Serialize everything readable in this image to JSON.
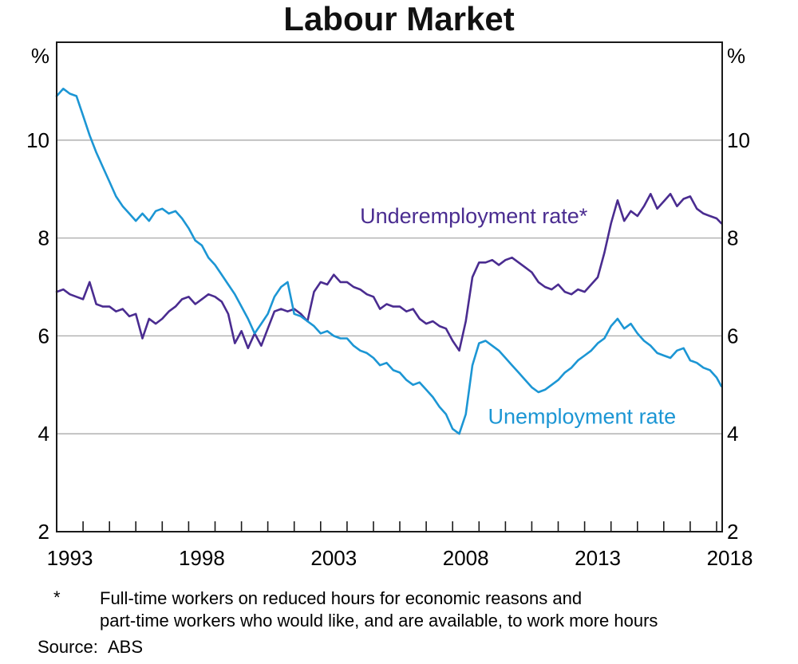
{
  "chart_data": {
    "type": "line",
    "title": "Labour Market",
    "y_unit": "%",
    "ylim": [
      2,
      12
    ],
    "gridline_values": [
      4,
      6,
      8,
      10
    ],
    "y_axis_labels": [
      10,
      8,
      6,
      4,
      2
    ],
    "x_start": 1993.0,
    "x_step": 0.25,
    "x_end": 2018.25,
    "x_tick_interval_years": 1,
    "x_label_years": [
      1993,
      1998,
      2003,
      2008,
      2013,
      2018
    ],
    "grid": true,
    "legend": "inline-labels",
    "colors": {
      "grid": "#a9a9a9",
      "frame": "#1a1a1a"
    },
    "series": [
      {
        "name": "Underemployment rate*",
        "color": "#4a2c90",
        "label_anchor": {
          "x_year": 2008.8,
          "y_value": 8.45
        },
        "values": [
          6.9,
          6.95,
          6.85,
          6.8,
          6.75,
          7.1,
          6.65,
          6.6,
          6.6,
          6.5,
          6.55,
          6.4,
          6.45,
          5.95,
          6.35,
          6.25,
          6.35,
          6.5,
          6.6,
          6.75,
          6.8,
          6.65,
          6.75,
          6.85,
          6.8,
          6.7,
          6.45,
          5.85,
          6.1,
          5.75,
          6.05,
          5.8,
          6.15,
          6.5,
          6.55,
          6.5,
          6.55,
          6.45,
          6.3,
          6.9,
          7.1,
          7.05,
          7.25,
          7.1,
          7.1,
          7.0,
          6.95,
          6.85,
          6.8,
          6.55,
          6.65,
          6.6,
          6.6,
          6.5,
          6.55,
          6.35,
          6.25,
          6.3,
          6.2,
          6.15,
          5.9,
          5.7,
          6.3,
          7.2,
          7.5,
          7.5,
          7.55,
          7.45,
          7.55,
          7.6,
          7.5,
          7.4,
          7.3,
          7.1,
          7.0,
          6.95,
          7.05,
          6.9,
          6.85,
          6.95,
          6.9,
          7.05,
          7.2,
          7.7,
          8.3,
          8.77,
          8.35,
          8.55,
          8.45,
          8.65,
          8.9,
          8.6,
          8.75,
          8.9,
          8.65,
          8.8,
          8.85,
          8.6,
          8.5,
          8.45,
          8.4,
          8.3
        ]
      },
      {
        "name": "Unemployment rate",
        "color": "#1c96d4",
        "label_anchor": {
          "x_year": 2012.9,
          "y_value": 4.35
        },
        "values": [
          10.9,
          11.05,
          10.95,
          10.9,
          10.5,
          10.1,
          9.75,
          9.45,
          9.15,
          8.85,
          8.65,
          8.5,
          8.35,
          8.5,
          8.35,
          8.55,
          8.6,
          8.5,
          8.55,
          8.4,
          8.2,
          7.95,
          7.85,
          7.6,
          7.45,
          7.25,
          7.05,
          6.85,
          6.6,
          6.35,
          6.05,
          6.25,
          6.45,
          6.8,
          7.0,
          7.1,
          6.45,
          6.4,
          6.3,
          6.2,
          6.05,
          6.1,
          6.0,
          5.95,
          5.95,
          5.8,
          5.7,
          5.65,
          5.55,
          5.4,
          5.45,
          5.3,
          5.25,
          5.1,
          5.0,
          5.05,
          4.9,
          4.75,
          4.55,
          4.4,
          4.1,
          4.0,
          4.4,
          5.4,
          5.85,
          5.9,
          5.8,
          5.7,
          5.55,
          5.4,
          5.25,
          5.1,
          4.95,
          4.85,
          4.9,
          5.0,
          5.1,
          5.25,
          5.35,
          5.5,
          5.6,
          5.7,
          5.85,
          5.95,
          6.2,
          6.35,
          6.15,
          6.25,
          6.05,
          5.9,
          5.8,
          5.65,
          5.6,
          5.55,
          5.7,
          5.75,
          5.5,
          5.45,
          5.35,
          5.3,
          5.15,
          4.97
        ]
      }
    ]
  },
  "footnote": {
    "marker": "*",
    "line1": "Full-time workers on reduced hours for economic reasons and",
    "line2": "part-time workers who would like, and are available, to work more hours"
  },
  "source": {
    "label": "Source:",
    "value": "ABS"
  }
}
